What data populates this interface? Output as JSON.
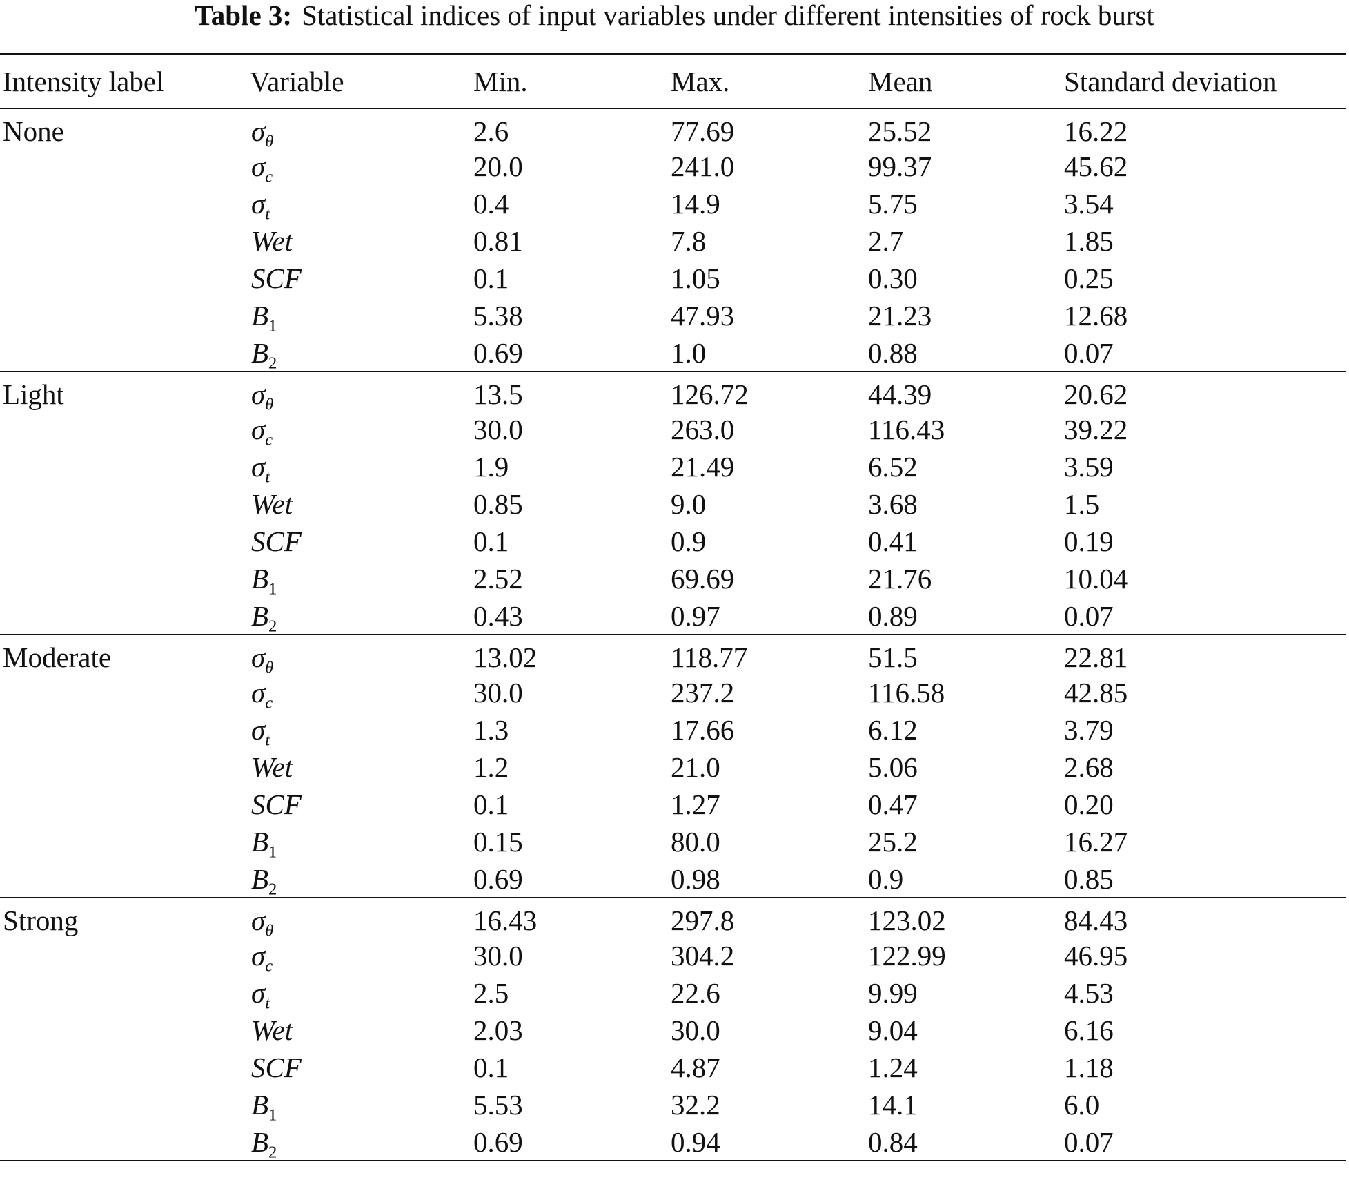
{
  "caption": {
    "label": "Table 3:",
    "text": "Statistical indices of input variables under different intensities of rock burst"
  },
  "table": {
    "headers": [
      "Intensity label",
      "Variable",
      "Min.",
      "Max.",
      "Mean",
      "Standard deviation"
    ],
    "groups": [
      {
        "label": "None",
        "rows": [
          {
            "var": "σ",
            "sub": "θ",
            "min": "2.6",
            "max": "77.69",
            "mean": "25.52",
            "sd": "16.22"
          },
          {
            "var": "σ",
            "sub": "c",
            "min": "20.0",
            "max": "241.0",
            "mean": "99.37",
            "sd": "45.62"
          },
          {
            "var": "σ",
            "sub": "t",
            "min": "0.4",
            "max": "14.9",
            "mean": "5.75",
            "sd": "3.54"
          },
          {
            "var": "Wet",
            "sub": "",
            "min": "0.81",
            "max": "7.8",
            "mean": "2.7",
            "sd": "1.85"
          },
          {
            "var": "SCF",
            "sub": "",
            "min": "0.1",
            "max": "1.05",
            "mean": "0.30",
            "sd": "0.25"
          },
          {
            "var": "B",
            "sub": "1",
            "min": "5.38",
            "max": "47.93",
            "mean": "21.23",
            "sd": "12.68"
          },
          {
            "var": "B",
            "sub": "2",
            "min": "0.69",
            "max": "1.0",
            "mean": "0.88",
            "sd": "0.07"
          }
        ]
      },
      {
        "label": "Light",
        "rows": [
          {
            "var": "σ",
            "sub": "θ",
            "min": "13.5",
            "max": "126.72",
            "mean": "44.39",
            "sd": "20.62"
          },
          {
            "var": "σ",
            "sub": "c",
            "min": "30.0",
            "max": "263.0",
            "mean": "116.43",
            "sd": "39.22"
          },
          {
            "var": "σ",
            "sub": "t",
            "min": "1.9",
            "max": "21.49",
            "mean": "6.52",
            "sd": "3.59"
          },
          {
            "var": "Wet",
            "sub": "",
            "min": "0.85",
            "max": "9.0",
            "mean": "3.68",
            "sd": "1.5"
          },
          {
            "var": "SCF",
            "sub": "",
            "min": "0.1",
            "max": "0.9",
            "mean": "0.41",
            "sd": "0.19"
          },
          {
            "var": "B",
            "sub": "1",
            "min": "2.52",
            "max": "69.69",
            "mean": "21.76",
            "sd": "10.04"
          },
          {
            "var": "B",
            "sub": "2",
            "min": "0.43",
            "max": "0.97",
            "mean": "0.89",
            "sd": "0.07"
          }
        ]
      },
      {
        "label": "Moderate",
        "rows": [
          {
            "var": "σ",
            "sub": "θ",
            "min": "13.02",
            "max": "118.77",
            "mean": "51.5",
            "sd": "22.81"
          },
          {
            "var": "σ",
            "sub": "c",
            "min": "30.0",
            "max": "237.2",
            "mean": "116.58",
            "sd": "42.85"
          },
          {
            "var": "σ",
            "sub": "t",
            "min": "1.3",
            "max": "17.66",
            "mean": "6.12",
            "sd": "3.79"
          },
          {
            "var": "Wet",
            "sub": "",
            "min": "1.2",
            "max": "21.0",
            "mean": "5.06",
            "sd": "2.68"
          },
          {
            "var": "SCF",
            "sub": "",
            "min": "0.1",
            "max": "1.27",
            "mean": "0.47",
            "sd": "0.20"
          },
          {
            "var": "B",
            "sub": "1",
            "min": "0.15",
            "max": "80.0",
            "mean": "25.2",
            "sd": "16.27"
          },
          {
            "var": "B",
            "sub": "2",
            "min": "0.69",
            "max": "0.98",
            "mean": "0.9",
            "sd": "0.85"
          }
        ]
      },
      {
        "label": "Strong",
        "rows": [
          {
            "var": "σ",
            "sub": "θ",
            "min": "16.43",
            "max": "297.8",
            "mean": "123.02",
            "sd": "84.43"
          },
          {
            "var": "σ",
            "sub": "c",
            "min": "30.0",
            "max": "304.2",
            "mean": "122.99",
            "sd": "46.95"
          },
          {
            "var": "σ",
            "sub": "t",
            "min": "2.5",
            "max": "22.6",
            "mean": "9.99",
            "sd": "4.53"
          },
          {
            "var": "Wet",
            "sub": "",
            "min": "2.03",
            "max": "30.0",
            "mean": "9.04",
            "sd": "6.16"
          },
          {
            "var": "SCF",
            "sub": "",
            "min": "0.1",
            "max": "4.87",
            "mean": "1.24",
            "sd": "1.18"
          },
          {
            "var": "B",
            "sub": "1",
            "min": "5.53",
            "max": "32.2",
            "mean": "14.1",
            "sd": "6.0"
          },
          {
            "var": "B",
            "sub": "2",
            "min": "0.69",
            "max": "0.94",
            "mean": "0.84",
            "sd": "0.07"
          }
        ]
      }
    ]
  }
}
